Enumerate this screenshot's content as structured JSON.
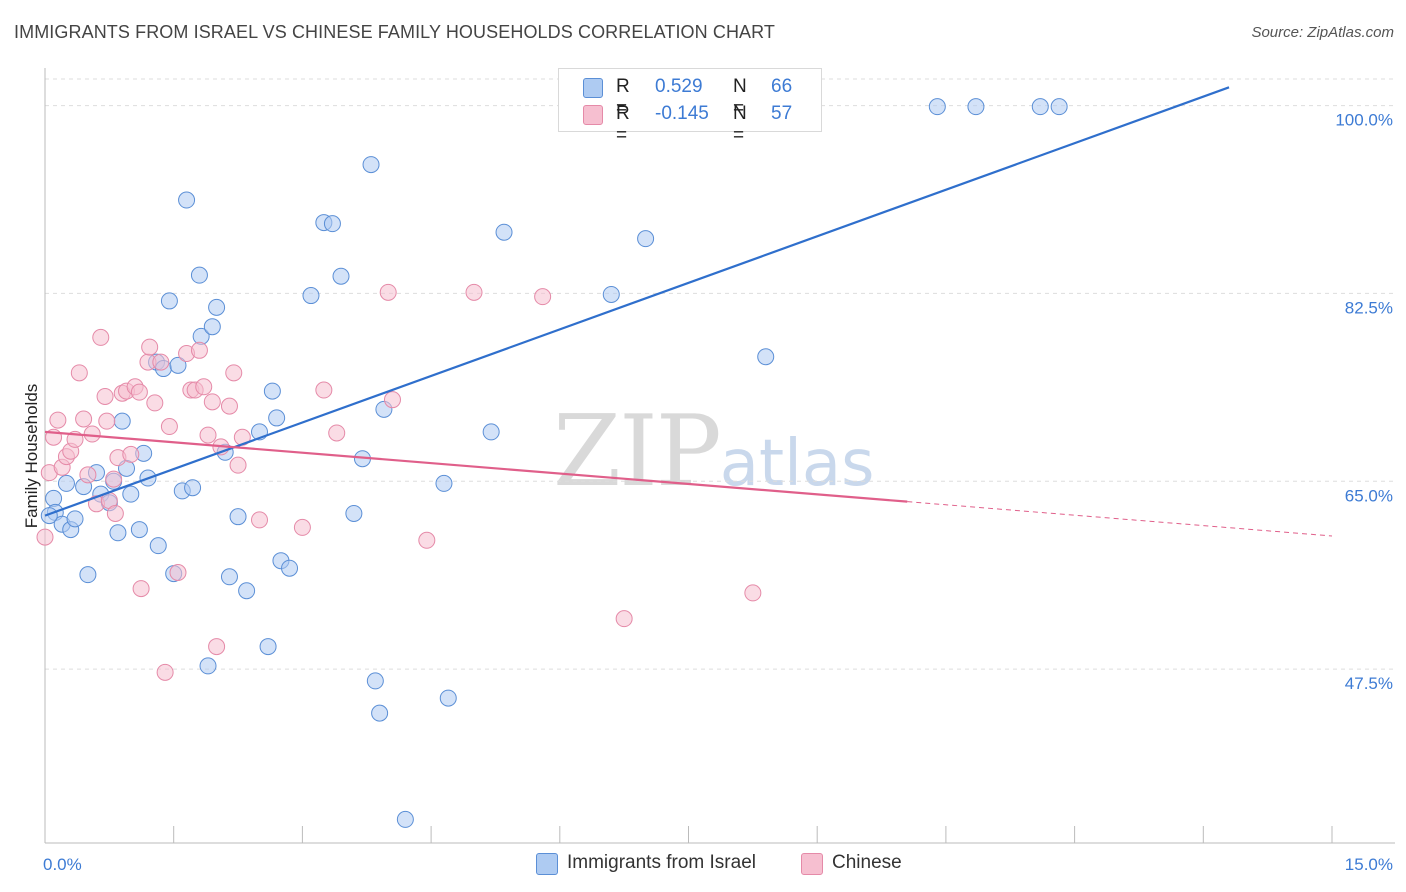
{
  "header": {
    "title": "IMMIGRANTS FROM ISRAEL VS CHINESE FAMILY HOUSEHOLDS CORRELATION CHART",
    "source": "Source: ZipAtlas.com"
  },
  "watermark": {
    "zip": "ZIP",
    "atlas": "atlas"
  },
  "legend": {
    "rows": [
      {
        "r_label": "R = ",
        "r_value": "0.529",
        "n_label": "N = ",
        "n_value": "66"
      },
      {
        "r_label": "R = ",
        "r_value": "-0.145",
        "n_label": "N = ",
        "n_value": "57"
      }
    ]
  },
  "bottom_legend": {
    "israel": "Immigrants from Israel",
    "chinese": "Chinese"
  },
  "colors": {
    "israel_fill": "#aecbf2",
    "israel_stroke": "#5b8fd6",
    "israel_line": "#2f6fcc",
    "chinese_fill": "#f6bfd0",
    "chinese_stroke": "#e58aa8",
    "chinese_line": "#e05f8a",
    "grid": "#dddddd",
    "axis_text": "#3d7bd4"
  },
  "chart_data": {
    "type": "scatter",
    "title": "IMMIGRANTS FROM ISRAEL VS CHINESE FAMILY HOUSEHOLDS CORRELATION CHART",
    "xlabel": "",
    "ylabel": "Family Households",
    "xlim": [
      0,
      15
    ],
    "ylim": [
      31.3,
      103.5
    ],
    "x_tick_labels": [
      {
        "value": 0,
        "label": "0.0%"
      },
      {
        "value": 15,
        "label": "15.0%"
      }
    ],
    "y_ticks": [
      {
        "value": 100,
        "label": "100.0%"
      },
      {
        "value": 82.5,
        "label": "82.5%"
      },
      {
        "value": 65,
        "label": "65.0%"
      },
      {
        "value": 47.5,
        "label": "47.5%"
      }
    ],
    "series": [
      {
        "name": "Immigrants from Israel",
        "key": "israel",
        "r": 0.529,
        "n": 66,
        "trend": {
          "x0": 0,
          "y0": 61.8,
          "x1": 13.8,
          "y1": 101.7,
          "extrapolate_to": null
        },
        "points": [
          [
            0.1,
            63.4
          ],
          [
            0.12,
            62.1
          ],
          [
            0.2,
            61.0
          ],
          [
            0.25,
            64.8
          ],
          [
            0.3,
            60.5
          ],
          [
            0.35,
            61.5
          ],
          [
            0.45,
            64.5
          ],
          [
            0.5,
            56.3
          ],
          [
            0.6,
            65.8
          ],
          [
            0.65,
            63.8
          ],
          [
            0.75,
            63.0
          ],
          [
            0.8,
            65.0
          ],
          [
            0.85,
            60.2
          ],
          [
            0.9,
            70.6
          ],
          [
            0.95,
            66.2
          ],
          [
            1.0,
            63.8
          ],
          [
            1.1,
            60.5
          ],
          [
            1.15,
            67.6
          ],
          [
            1.2,
            65.3
          ],
          [
            1.3,
            76.1
          ],
          [
            1.32,
            59.0
          ],
          [
            1.38,
            75.5
          ],
          [
            1.45,
            81.8
          ],
          [
            1.5,
            56.4
          ],
          [
            1.55,
            75.8
          ],
          [
            1.6,
            64.1
          ],
          [
            1.65,
            91.2
          ],
          [
            1.72,
            64.4
          ],
          [
            1.8,
            84.2
          ],
          [
            1.82,
            78.5
          ],
          [
            1.9,
            47.8
          ],
          [
            1.95,
            79.4
          ],
          [
            2.0,
            81.2
          ],
          [
            2.1,
            67.7
          ],
          [
            2.15,
            56.1
          ],
          [
            2.25,
            61.7
          ],
          [
            2.35,
            54.8
          ],
          [
            2.5,
            69.6
          ],
          [
            2.6,
            49.6
          ],
          [
            2.65,
            73.4
          ],
          [
            2.7,
            70.9
          ],
          [
            2.75,
            57.6
          ],
          [
            2.85,
            56.9
          ],
          [
            3.1,
            82.3
          ],
          [
            3.25,
            89.1
          ],
          [
            3.35,
            89.0
          ],
          [
            3.45,
            84.1
          ],
          [
            3.6,
            62.0
          ],
          [
            3.7,
            67.1
          ],
          [
            3.8,
            94.5
          ],
          [
            3.85,
            46.4
          ],
          [
            3.9,
            43.4
          ],
          [
            3.95,
            71.7
          ],
          [
            4.2,
            33.5
          ],
          [
            4.65,
            64.8
          ],
          [
            4.7,
            44.8
          ],
          [
            5.2,
            69.6
          ],
          [
            5.35,
            88.2
          ],
          [
            6.6,
            82.4
          ],
          [
            7.0,
            87.6
          ],
          [
            8.4,
            76.6
          ],
          [
            10.4,
            99.9
          ],
          [
            10.85,
            99.9
          ],
          [
            11.6,
            99.9
          ],
          [
            11.82,
            99.9
          ],
          [
            0.05,
            61.8
          ]
        ]
      },
      {
        "name": "Chinese",
        "key": "chinese",
        "r": -0.145,
        "n": 57,
        "trend": {
          "x0": 0,
          "y0": 69.6,
          "x1": 10.05,
          "y1": 63.1,
          "extrapolate_to": {
            "x": 15.0,
            "y": 59.9
          }
        },
        "points": [
          [
            0.0,
            59.8
          ],
          [
            0.05,
            65.8
          ],
          [
            0.1,
            69.1
          ],
          [
            0.15,
            70.7
          ],
          [
            0.2,
            66.3
          ],
          [
            0.25,
            67.3
          ],
          [
            0.3,
            67.8
          ],
          [
            0.35,
            68.9
          ],
          [
            0.4,
            75.1
          ],
          [
            0.45,
            70.8
          ],
          [
            0.5,
            65.6
          ],
          [
            0.55,
            69.4
          ],
          [
            0.6,
            62.9
          ],
          [
            0.65,
            78.4
          ],
          [
            0.7,
            72.9
          ],
          [
            0.72,
            70.6
          ],
          [
            0.75,
            63.2
          ],
          [
            0.8,
            65.2
          ],
          [
            0.82,
            62.0
          ],
          [
            0.85,
            67.2
          ],
          [
            0.9,
            73.2
          ],
          [
            0.95,
            73.4
          ],
          [
            1.0,
            67.5
          ],
          [
            1.05,
            73.8
          ],
          [
            1.1,
            73.3
          ],
          [
            1.12,
            55.0
          ],
          [
            1.2,
            76.1
          ],
          [
            1.22,
            77.5
          ],
          [
            1.28,
            72.3
          ],
          [
            1.35,
            76.1
          ],
          [
            1.4,
            47.2
          ],
          [
            1.45,
            70.1
          ],
          [
            1.55,
            56.5
          ],
          [
            1.65,
            76.9
          ],
          [
            1.7,
            73.5
          ],
          [
            1.75,
            73.5
          ],
          [
            1.8,
            77.2
          ],
          [
            1.85,
            73.8
          ],
          [
            1.9,
            69.3
          ],
          [
            1.95,
            72.4
          ],
          [
            2.0,
            49.6
          ],
          [
            2.05,
            68.2
          ],
          [
            2.15,
            72.0
          ],
          [
            2.2,
            75.1
          ],
          [
            2.25,
            66.5
          ],
          [
            2.3,
            69.1
          ],
          [
            2.5,
            61.4
          ],
          [
            3.0,
            60.7
          ],
          [
            3.25,
            73.5
          ],
          [
            3.4,
            69.5
          ],
          [
            4.05,
            72.6
          ],
          [
            4.45,
            59.5
          ],
          [
            5.0,
            82.6
          ],
          [
            5.8,
            82.2
          ],
          [
            6.75,
            52.2
          ],
          [
            8.25,
            54.6
          ],
          [
            4.0,
            82.6
          ]
        ]
      }
    ]
  }
}
